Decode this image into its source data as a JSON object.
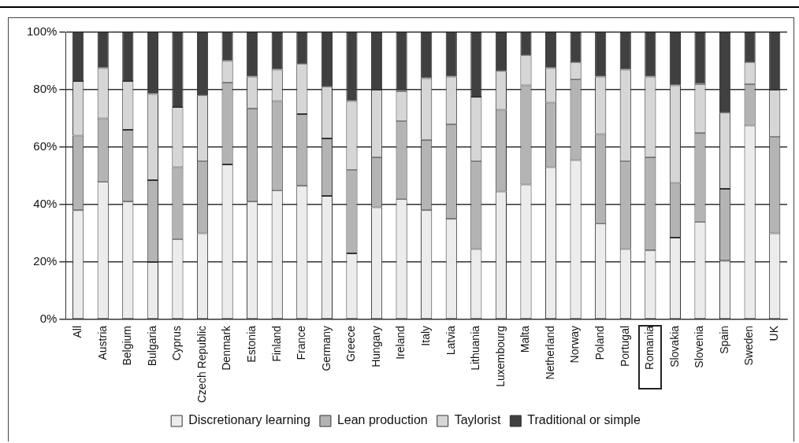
{
  "chart_data": {
    "type": "bar",
    "stacked": true,
    "categories": [
      "All",
      "Austria",
      "Belgium",
      "Bulgaria",
      "Cyprus",
      "Czech Republic",
      "Denmark",
      "Estonia",
      "Finland",
      "France",
      "Germany",
      "Greece",
      "Hungary",
      "Ireland",
      "Italy",
      "Latvia",
      "Lithuania",
      "Luxembourg",
      "Malta",
      "Netherland",
      "Norway",
      "Poland",
      "Portugal",
      "Romania",
      "Slovakia",
      "Slovenia",
      "Spain",
      "Sweden",
      "UK"
    ],
    "series": [
      {
        "name": "Discretionary learning",
        "color": "#ececec",
        "values": [
          38,
          48,
          41,
          20,
          28,
          30,
          54,
          41,
          45,
          46.5,
          43,
          23,
          39,
          42,
          38,
          35,
          24.5,
          44.5,
          47,
          53,
          55.5,
          33.5,
          24.5,
          24,
          28.5,
          34,
          20.5,
          67.5,
          30
        ]
      },
      {
        "name": "Lean production",
        "color": "#b4b4b4",
        "values": [
          26,
          22,
          25,
          28.5,
          25,
          25,
          28.5,
          32.5,
          31,
          25,
          20,
          29,
          17.5,
          27,
          24.5,
          33,
          30.5,
          28.5,
          34.5,
          22.5,
          28,
          31,
          30.5,
          32.5,
          19,
          31,
          25,
          14.5,
          33.5
        ]
      },
      {
        "name": "Taylorist",
        "color": "#d6d6d6",
        "values": [
          19,
          17.5,
          17,
          30,
          21,
          23,
          7.5,
          11,
          11,
          17.5,
          18,
          24,
          23.5,
          10.5,
          21.5,
          16.5,
          22.5,
          13.5,
          10.5,
          12,
          6,
          20,
          32,
          28,
          34,
          17,
          26.5,
          7.5,
          16.5
        ]
      },
      {
        "name": "Traditional or simple",
        "color": "#404040",
        "values": [
          17,
          12.5,
          17,
          21.5,
          26,
          22,
          10,
          15.5,
          13,
          11,
          19,
          24,
          20,
          20.5,
          16,
          15.5,
          22.5,
          13.5,
          8,
          12.5,
          10.5,
          15.5,
          13,
          15.5,
          18.5,
          18,
          28,
          10.5,
          20
        ]
      }
    ],
    "ylim": [
      0,
      100
    ],
    "yticks": [
      {
        "value": 0,
        "label": "0%"
      },
      {
        "value": 20,
        "label": "20%"
      },
      {
        "value": 40,
        "label": "40%"
      },
      {
        "value": 60,
        "label": "60%"
      },
      {
        "value": 80,
        "label": "80%"
      },
      {
        "value": 100,
        "label": "100%"
      }
    ],
    "grid": "y",
    "legend": "bottom"
  }
}
